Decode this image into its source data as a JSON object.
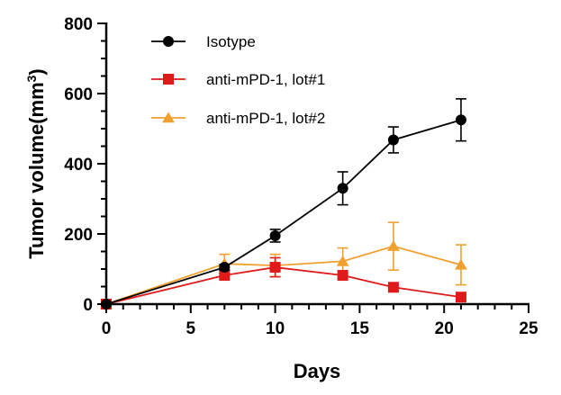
{
  "chart_data": {
    "type": "line",
    "xlabel": "Days",
    "ylabel": {
      "prefix": "Tumor volume(mm",
      "sup": "3",
      "suffix": ")"
    },
    "xlim": [
      0,
      25
    ],
    "ylim": [
      0,
      800
    ],
    "xticks": [
      0,
      5,
      10,
      15,
      20,
      25
    ],
    "yticks": [
      0,
      200,
      400,
      600,
      800
    ],
    "grid": false,
    "legend_position": "top-left",
    "series": [
      {
        "name": "Isotype",
        "color": "#000000",
        "marker": "circle",
        "x": [
          0,
          7,
          10,
          14,
          17,
          21
        ],
        "y": [
          0,
          105,
          195,
          330,
          468,
          525
        ],
        "err": [
          0,
          8,
          18,
          47,
          37,
          60
        ]
      },
      {
        "name": "anti-mPD-1, lot#1",
        "color": "#e01a1a",
        "marker": "square",
        "x": [
          0,
          7,
          10,
          14,
          17,
          21
        ],
        "y": [
          0,
          82,
          105,
          82,
          48,
          20
        ],
        "err": [
          0,
          0,
          27,
          0,
          0,
          0
        ]
      },
      {
        "name": "anti-mPD-1, lot#2",
        "color": "#f0a030",
        "marker": "triangle",
        "x": [
          0,
          7,
          10,
          14,
          17,
          21
        ],
        "y": [
          0,
          115,
          110,
          122,
          165,
          112
        ],
        "err": [
          0,
          27,
          32,
          38,
          68,
          57
        ]
      }
    ]
  }
}
